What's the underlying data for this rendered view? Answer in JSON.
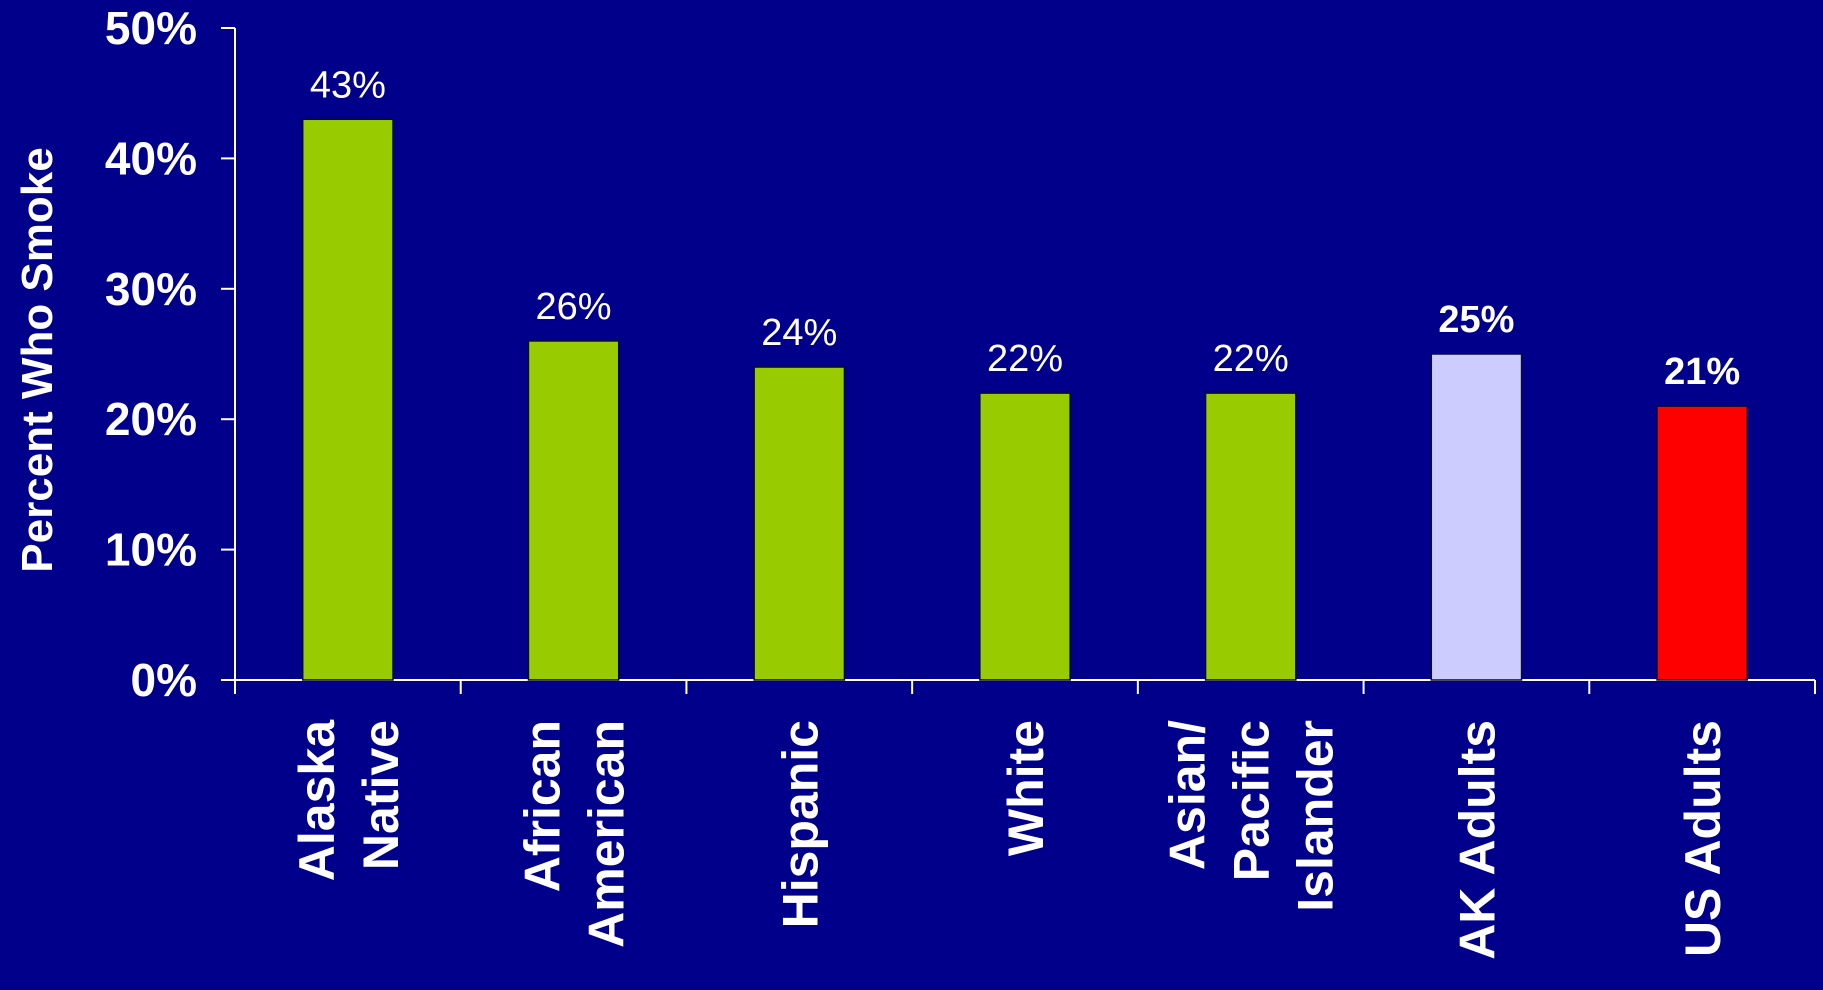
{
  "chart_data": {
    "type": "bar",
    "title": "",
    "ylabel": "Percent Who Smoke",
    "xlabel": "",
    "ylim": [
      0,
      50
    ],
    "yticks": [
      0,
      10,
      20,
      30,
      40,
      50
    ],
    "ytick_labels": [
      "0%",
      "10%",
      "20%",
      "30%",
      "40%",
      "50%"
    ],
    "grid": false,
    "legend": "none",
    "categories": [
      [
        "Alaska",
        "Native"
      ],
      [
        "African",
        "American"
      ],
      [
        "Hispanic"
      ],
      [
        "White"
      ],
      [
        "Asian/",
        "Pacific",
        "Islander"
      ],
      [
        "AK Adults"
      ],
      [
        "US Adults"
      ]
    ],
    "values": [
      43,
      26,
      24,
      22,
      22,
      25,
      21
    ],
    "data_labels": [
      "43%",
      "26%",
      "24%",
      "22%",
      "22%",
      "25%",
      "21%"
    ],
    "data_label_bold": [
      false,
      false,
      false,
      false,
      false,
      true,
      true
    ],
    "bar_colors": [
      "#99CC00",
      "#99CC00",
      "#99CC00",
      "#99CC00",
      "#99CC00",
      "#CCCCFF",
      "#FF0000"
    ],
    "background_color": "#00008B",
    "text_color": "#FFFFFF"
  }
}
